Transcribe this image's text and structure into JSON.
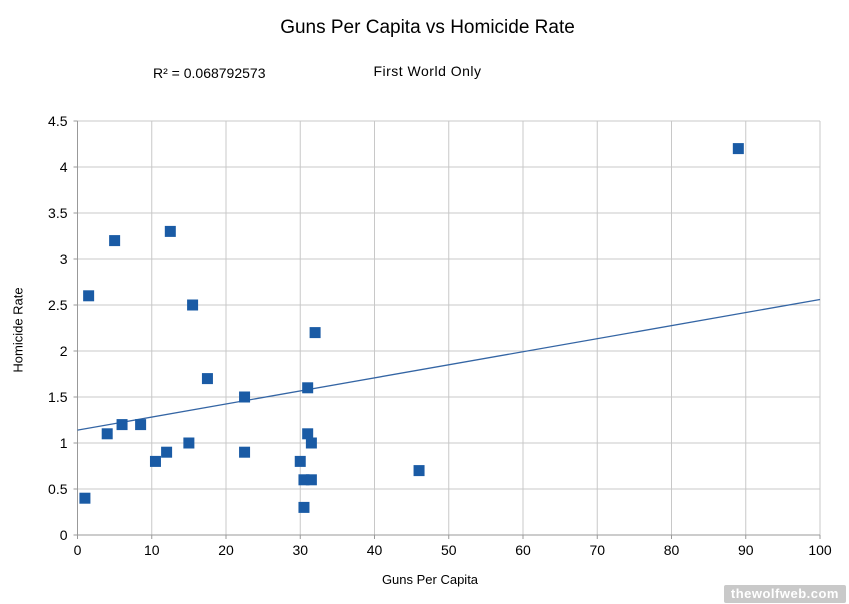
{
  "header": {
    "title": "Guns Per Capita vs Homicide Rate",
    "subtitle": "First World Only",
    "r2_label": "R² = 0.068792573"
  },
  "chart_data": {
    "type": "scatter",
    "title": "Guns Per Capita vs Homicide Rate",
    "subtitle": "First World Only",
    "r_squared": 0.068792573,
    "r_squared_label": "R² = 0.068792573",
    "xlabel": "Guns Per Capita",
    "ylabel": "Homicide Rate",
    "xlim": [
      0,
      100
    ],
    "ylim": [
      0,
      4.5
    ],
    "x_ticks": [
      0,
      10,
      20,
      30,
      40,
      50,
      60,
      70,
      80,
      90,
      100
    ],
    "y_ticks": [
      0,
      0.5,
      1,
      1.5,
      2,
      2.5,
      3,
      3.5,
      4,
      4.5
    ],
    "grid": true,
    "legend": "none",
    "marker": "square",
    "marker_size_px": 11,
    "marker_color": "#1a5ba5",
    "grid_color": "#c8c8c8",
    "axis_color": "#999999",
    "trendline": {
      "x1": 0,
      "y1": 1.14,
      "x2": 100,
      "y2": 2.56,
      "color": "#3465a4"
    },
    "points": [
      [
        1,
        0.4
      ],
      [
        1.5,
        2.6
      ],
      [
        4,
        1.1
      ],
      [
        5,
        3.2
      ],
      [
        6,
        1.2
      ],
      [
        8.5,
        1.2
      ],
      [
        10.5,
        0.8
      ],
      [
        12,
        0.9
      ],
      [
        12.5,
        3.3
      ],
      [
        15,
        1.0
      ],
      [
        15.5,
        2.5
      ],
      [
        17.5,
        1.7
      ],
      [
        22.5,
        0.9
      ],
      [
        22.5,
        1.5
      ],
      [
        30,
        0.8
      ],
      [
        30.5,
        0.3
      ],
      [
        30.5,
        0.6
      ],
      [
        31,
        1.1
      ],
      [
        31,
        1.6
      ],
      [
        31.5,
        0.6
      ],
      [
        31.5,
        1.0
      ],
      [
        32,
        2.2
      ],
      [
        46,
        0.7
      ],
      [
        89,
        4.2
      ]
    ]
  },
  "watermark": {
    "text": "thewolfweb.com",
    "bg": "#c9c9c9",
    "fg": "#ffffff"
  }
}
